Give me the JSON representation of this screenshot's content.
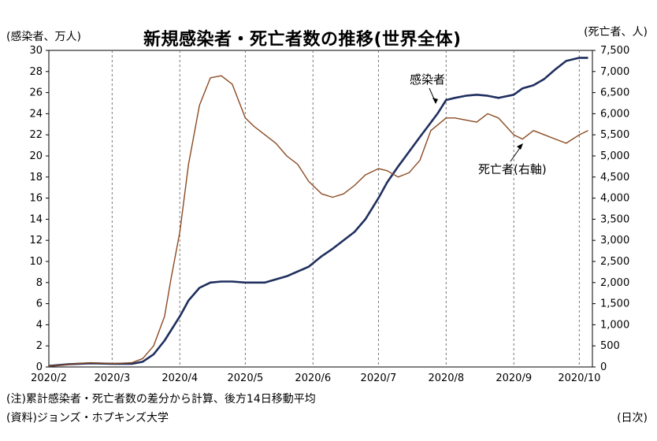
{
  "header": {
    "title": "新規感染者・死亡者数の推移(世界全体)",
    "left_axis_label": "(感染者、万人)",
    "right_axis_label": "(死亡者、人)"
  },
  "footer": {
    "note": "(注)累計感染者・死亡者数の差分から計算、後方14日移動平均",
    "source": "(資料)ジョンズ・ホプキンズ大学",
    "x_unit": "(日次)"
  },
  "chart_data": {
    "type": "line",
    "title": "新規感染者・死亡者数の推移(世界全体)",
    "x_ticks": [
      "2020/2",
      "2020/3",
      "2020/4",
      "2020/5",
      "2020/6",
      "2020/7",
      "2020/8",
      "2020/9",
      "2020/10"
    ],
    "y_left": {
      "label": "(感染者、万人)",
      "ylim": [
        0,
        30
      ],
      "ticks": [
        "0",
        "2",
        "4",
        "6",
        "8",
        "10",
        "12",
        "14",
        "16",
        "18",
        "20",
        "22",
        "24",
        "26",
        "28",
        "30"
      ]
    },
    "y_right": {
      "label": "(死亡者、人)",
      "ylim": [
        0,
        7500
      ],
      "ticks": [
        "0",
        "500",
        "1,000",
        "1,500",
        "2,000",
        "2,500",
        "3,000",
        "3,500",
        "4,000",
        "4,500",
        "5,000",
        "5,500",
        "6,000",
        "6,500",
        "7,000",
        "7,500"
      ]
    },
    "grid": "vertical-dashed-at-month-starts",
    "series": [
      {
        "name": "感染者",
        "axis": "left",
        "color": "#1f2f5e",
        "points": [
          [
            "2020-02-01",
            0.1
          ],
          [
            "2020-02-10",
            0.25
          ],
          [
            "2020-02-20",
            0.35
          ],
          [
            "2020-03-01",
            0.3
          ],
          [
            "2020-03-10",
            0.3
          ],
          [
            "2020-03-15",
            0.5
          ],
          [
            "2020-03-20",
            1.2
          ],
          [
            "2020-03-25",
            2.5
          ],
          [
            "2020-04-01",
            4.8
          ],
          [
            "2020-04-05",
            6.3
          ],
          [
            "2020-04-10",
            7.5
          ],
          [
            "2020-04-15",
            8.0
          ],
          [
            "2020-04-20",
            8.1
          ],
          [
            "2020-04-25",
            8.1
          ],
          [
            "2020-05-01",
            8.0
          ],
          [
            "2020-05-10",
            8.0
          ],
          [
            "2020-05-20",
            8.6
          ],
          [
            "2020-05-30",
            9.5
          ],
          [
            "2020-06-05",
            10.5
          ],
          [
            "2020-06-10",
            11.2
          ],
          [
            "2020-06-20",
            12.8
          ],
          [
            "2020-06-25",
            14.0
          ],
          [
            "2020-07-01",
            16.0
          ],
          [
            "2020-07-05",
            17.5
          ],
          [
            "2020-07-10",
            19.0
          ],
          [
            "2020-07-20",
            21.8
          ],
          [
            "2020-07-28",
            24.0
          ],
          [
            "2020-08-01",
            25.3
          ],
          [
            "2020-08-05",
            25.5
          ],
          [
            "2020-08-10",
            25.7
          ],
          [
            "2020-08-15",
            25.8
          ],
          [
            "2020-08-20",
            25.7
          ],
          [
            "2020-08-25",
            25.5
          ],
          [
            "2020-09-01",
            25.8
          ],
          [
            "2020-09-05",
            26.4
          ],
          [
            "2020-09-10",
            26.7
          ],
          [
            "2020-09-15",
            27.3
          ],
          [
            "2020-09-20",
            28.2
          ],
          [
            "2020-09-25",
            29.0
          ],
          [
            "2020-10-01",
            29.3
          ],
          [
            "2020-10-05",
            29.3
          ]
        ]
      },
      {
        "name": "死亡者(右軸)",
        "axis": "right",
        "color": "#8b4a22",
        "points": [
          [
            "2020-02-01",
            20
          ],
          [
            "2020-02-10",
            60
          ],
          [
            "2020-02-20",
            100
          ],
          [
            "2020-03-01",
            80
          ],
          [
            "2020-03-10",
            100
          ],
          [
            "2020-03-15",
            200
          ],
          [
            "2020-03-20",
            500
          ],
          [
            "2020-03-25",
            1200
          ],
          [
            "2020-03-28",
            2100
          ],
          [
            "2020-04-01",
            3200
          ],
          [
            "2020-04-05",
            4800
          ],
          [
            "2020-04-10",
            6200
          ],
          [
            "2020-04-15",
            6850
          ],
          [
            "2020-04-20",
            6900
          ],
          [
            "2020-04-25",
            6700
          ],
          [
            "2020-05-01",
            5900
          ],
          [
            "2020-05-05",
            5700
          ],
          [
            "2020-05-10",
            5500
          ],
          [
            "2020-05-15",
            5300
          ],
          [
            "2020-05-20",
            5000
          ],
          [
            "2020-05-25",
            4800
          ],
          [
            "2020-05-30",
            4400
          ],
          [
            "2020-06-05",
            4100
          ],
          [
            "2020-06-10",
            4020
          ],
          [
            "2020-06-15",
            4100
          ],
          [
            "2020-06-20",
            4300
          ],
          [
            "2020-06-25",
            4550
          ],
          [
            "2020-07-01",
            4700
          ],
          [
            "2020-07-05",
            4650
          ],
          [
            "2020-07-10",
            4500
          ],
          [
            "2020-07-15",
            4600
          ],
          [
            "2020-07-20",
            4900
          ],
          [
            "2020-07-25",
            5600
          ],
          [
            "2020-08-01",
            5900
          ],
          [
            "2020-08-05",
            5900
          ],
          [
            "2020-08-10",
            5850
          ],
          [
            "2020-08-15",
            5800
          ],
          [
            "2020-08-20",
            6000
          ],
          [
            "2020-08-25",
            5900
          ],
          [
            "2020-09-01",
            5500
          ],
          [
            "2020-09-05",
            5400
          ],
          [
            "2020-09-10",
            5600
          ],
          [
            "2020-09-15",
            5500
          ],
          [
            "2020-09-20",
            5400
          ],
          [
            "2020-09-25",
            5300
          ],
          [
            "2020-10-01",
            5500
          ],
          [
            "2020-10-05",
            5600
          ]
        ]
      }
    ],
    "annotations": [
      {
        "text": "感染者",
        "series": "感染者"
      },
      {
        "text": "死亡者(右軸)",
        "series": "死亡者(右軸)"
      }
    ]
  }
}
